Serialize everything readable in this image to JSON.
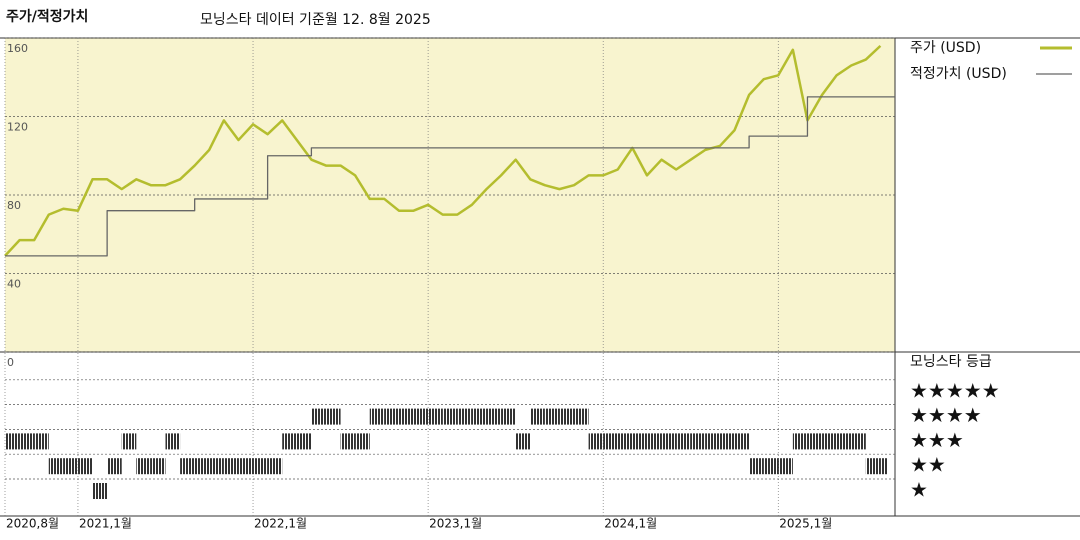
{
  "chart_data": {
    "type": "line",
    "title": "주가/적정가치",
    "subtitle": "모닝스타 데이터 기준월 12. 8월 2025",
    "x": [
      "2020-08",
      "2020-09",
      "2020-10",
      "2020-11",
      "2020-12",
      "2021-01",
      "2021-02",
      "2021-03",
      "2021-04",
      "2021-05",
      "2021-06",
      "2021-07",
      "2021-08",
      "2021-09",
      "2021-10",
      "2021-11",
      "2021-12",
      "2022-01",
      "2022-02",
      "2022-03",
      "2022-04",
      "2022-05",
      "2022-06",
      "2022-07",
      "2022-08",
      "2022-09",
      "2022-10",
      "2022-11",
      "2022-12",
      "2023-01",
      "2023-02",
      "2023-03",
      "2023-04",
      "2023-05",
      "2023-06",
      "2023-07",
      "2023-08",
      "2023-09",
      "2023-10",
      "2023-11",
      "2023-12",
      "2024-01",
      "2024-02",
      "2024-03",
      "2024-04",
      "2024-05",
      "2024-06",
      "2024-07",
      "2024-08",
      "2024-09",
      "2024-10",
      "2024-11",
      "2024-12",
      "2025-01",
      "2025-02",
      "2025-03",
      "2025-04",
      "2025-05",
      "2025-06",
      "2025-07",
      "2025-08"
    ],
    "series": [
      {
        "name": "주가 (USD)",
        "color": "#b4bd2e",
        "values": [
          49,
          57,
          57,
          70,
          73,
          72,
          88,
          88,
          83,
          88,
          85,
          85,
          88,
          95,
          103,
          118,
          108,
          116,
          111,
          118,
          108,
          98,
          95,
          95,
          90,
          78,
          78,
          72,
          72,
          75,
          70,
          70,
          75,
          83,
          90,
          98,
          88,
          85,
          83,
          85,
          90,
          90,
          93,
          104,
          90,
          98,
          93,
          98,
          103,
          105,
          113,
          131,
          139,
          141,
          154,
          118,
          131,
          141,
          146,
          149,
          156
        ]
      },
      {
        "name": "적정가치 (USD)",
        "color": "#666666",
        "step": true,
        "values": [
          49,
          49,
          49,
          49,
          49,
          49,
          49,
          72,
          72,
          72,
          72,
          72,
          72,
          78,
          78,
          78,
          78,
          78,
          100,
          100,
          100,
          104,
          104,
          104,
          104,
          104,
          104,
          104,
          104,
          104,
          104,
          104,
          104,
          104,
          104,
          104,
          104,
          104,
          104,
          104,
          104,
          104,
          104,
          104,
          104,
          104,
          104,
          104,
          104,
          104,
          104,
          110,
          110,
          110,
          110,
          130,
          130,
          130,
          130,
          130,
          130
        ]
      }
    ],
    "xlim": [
      "2020-08",
      "2025-09"
    ],
    "xticks": [
      {
        "value": "2020-08",
        "label": "2020,8월"
      },
      {
        "value": "2021-01",
        "label": "2021,1월"
      },
      {
        "value": "2022-01",
        "label": "2022,1월"
      },
      {
        "value": "2023-01",
        "label": "2023,1월"
      },
      {
        "value": "2024-01",
        "label": "2024,1월"
      },
      {
        "value": "2025-01",
        "label": "2025,1월"
      }
    ],
    "ylim": [
      0,
      160
    ],
    "yticks": [
      0,
      40,
      80,
      120,
      160
    ],
    "grid": true,
    "rating": {
      "title": "모닝스타 등급",
      "color": "#333333",
      "values": [
        3,
        3,
        3,
        2,
        2,
        2,
        1,
        2,
        3,
        2,
        2,
        3,
        2,
        2,
        2,
        2,
        2,
        2,
        2,
        3,
        3,
        4,
        4,
        3,
        3,
        4,
        4,
        4,
        4,
        4,
        4,
        4,
        4,
        4,
        4,
        3,
        4,
        4,
        4,
        4,
        3,
        3,
        3,
        3,
        3,
        3,
        3,
        3,
        3,
        3,
        3,
        2,
        2,
        2,
        3,
        3,
        3,
        3,
        3,
        2,
        2
      ],
      "ticks": [
        {
          "value": 5,
          "label": "★★★★★"
        },
        {
          "value": 4,
          "label": "★★★★"
        },
        {
          "value": 3,
          "label": "★★★"
        },
        {
          "value": 2,
          "label": "★★"
        },
        {
          "value": 1,
          "label": "★"
        }
      ]
    }
  }
}
